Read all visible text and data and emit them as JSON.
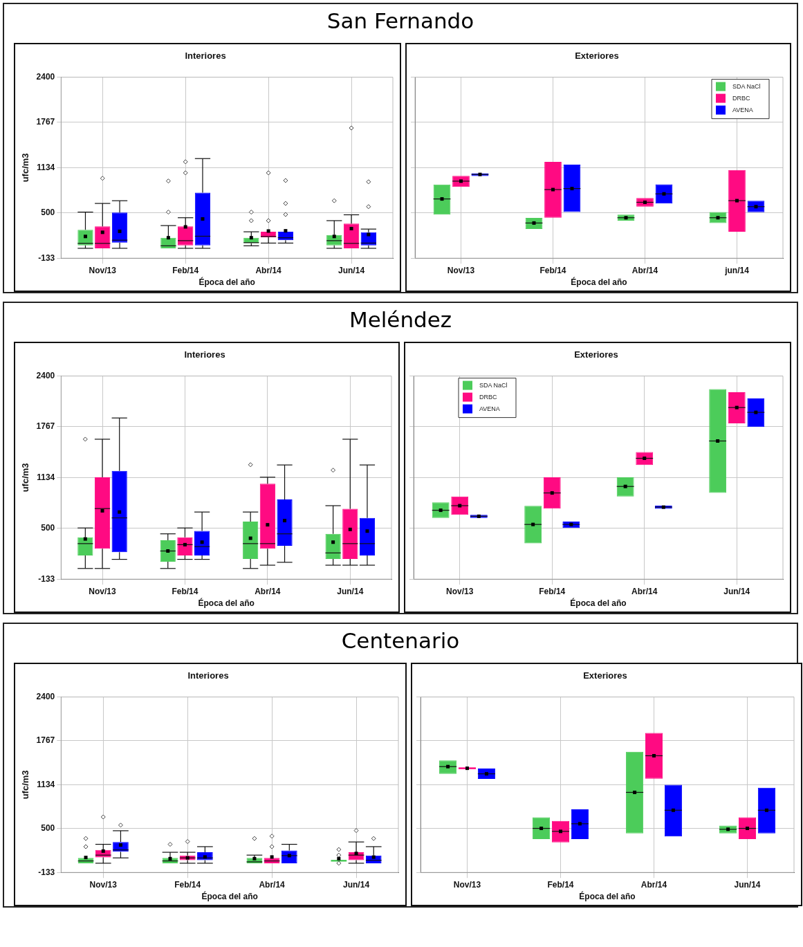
{
  "chart_data": [
    {
      "type": "other",
      "title": "San Fernando"
    },
    {
      "type": "box",
      "title": "Interiores",
      "xlabel": "Época del año",
      "ylabel": "ufc/m3",
      "categories": [
        "Nov/13",
        "Feb/14",
        "Abr/14",
        "Jun/14"
      ],
      "ylim": [
        -133,
        2400
      ],
      "yticks": [
        -133,
        500,
        1134,
        1767,
        2400
      ],
      "grid": true,
      "series": [
        {
          "color": "#4ccc5a",
          "boxes": [
            {
              "low": 5,
              "q1": 46,
              "median": 74,
              "q3": 264,
              "high": 512,
              "mean": 171
            },
            {
              "low": 5,
              "q1": 5,
              "median": 40,
              "q3": 153,
              "high": 323,
              "mean": 153,
              "outliers": [
                512,
                947
              ]
            },
            {
              "low": 40,
              "q1": 78,
              "median": 84,
              "q3": 153,
              "high": 236,
              "mean": 153,
              "outliers": [
                392,
                512
              ]
            },
            {
              "low": 5,
              "q1": 46,
              "median": 112,
              "q3": 191,
              "high": 392,
              "mean": 171,
              "outliers": [
                671
              ]
            }
          ]
        },
        {
          "color": "#ff0a82",
          "boxes": [
            {
              "low": 5,
              "q1": 5,
              "median": 74,
              "q3": 312,
              "high": 633,
              "mean": 229,
              "outliers": [
                985
              ]
            },
            {
              "low": 5,
              "q1": 46,
              "median": 112,
              "q3": 312,
              "high": 433,
              "mean": 305,
              "outliers": [
                1061,
                1216
              ]
            },
            {
              "low": 78,
              "q1": 160,
              "median": 170,
              "q3": 236,
              "high": 236,
              "mean": 247,
              "outliers": [
                392,
                1061
              ]
            },
            {
              "low": 5,
              "q1": 5,
              "median": 74,
              "q3": 350,
              "high": 474,
              "mean": 281,
              "outliers": [
                1689
              ]
            }
          ]
        },
        {
          "color": "#0000ff",
          "boxes": [
            {
              "low": 5,
              "q1": 84,
              "median": 119,
              "q3": 505,
              "high": 671,
              "mean": 243
            },
            {
              "low": 5,
              "q1": 46,
              "median": 174,
              "q3": 785,
              "high": 1261,
              "mean": 416
            },
            {
              "low": 78,
              "q1": 119,
              "median": 153,
              "q3": 236,
              "high": 236,
              "mean": 250,
              "outliers": [
                478,
                633,
                954
              ]
            },
            {
              "low": 5,
              "q1": 46,
              "median": 78,
              "q3": 229,
              "high": 274,
              "mean": 198,
              "outliers": [
                588,
                936
              ]
            }
          ]
        }
      ]
    },
    {
      "type": "box",
      "title": "Exteriores",
      "xlabel": "Época del año",
      "categories": [
        "Nov/13",
        "Feb/14",
        "Abr/14",
        "jun/14"
      ],
      "ylim": [
        -133,
        2400
      ],
      "yticks": [
        -133,
        500,
        1134,
        1767,
        2400
      ],
      "grid": true,
      "tick_labels": "x",
      "legend": "top right",
      "series": [
        {
          "name": "SDA NaCl",
          "color": "#4ccc5a",
          "boxes": [
            {
              "low": 477,
              "q1": 477,
              "median": 696,
              "q3": 898,
              "high": 898,
              "mean": 696
            },
            {
              "low": 275,
              "q1": 275,
              "median": 359,
              "q3": 430,
              "high": 430,
              "mean": 359
            },
            {
              "low": 393,
              "q1": 393,
              "median": 433,
              "q3": 477,
              "high": 477,
              "mean": 433
            },
            {
              "low": 359,
              "q1": 359,
              "median": 433,
              "q3": 514,
              "high": 514,
              "mean": 433
            }
          ]
        },
        {
          "name": "DRBC",
          "color": "#ff0a82",
          "boxes": [
            {
              "low": 864,
              "q1": 864,
              "median": 945,
              "q3": 1019,
              "high": 1019,
              "mean": 945
            },
            {
              "low": 433,
              "q1": 433,
              "median": 827,
              "q3": 1214,
              "high": 1214,
              "mean": 827
            },
            {
              "low": 588,
              "q1": 588,
              "median": 649,
              "q3": 709,
              "high": 709,
              "mean": 649
            },
            {
              "low": 238,
              "q1": 238,
              "median": 672,
              "q3": 1100,
              "high": 1100,
              "mean": 672
            }
          ]
        },
        {
          "name": "AVENA",
          "color": "#0000ff",
          "boxes": [
            {
              "low": 1016,
              "q1": 1016,
              "median": 1039,
              "q3": 1056,
              "high": 1056,
              "mean": 1039
            },
            {
              "low": 514,
              "q1": 514,
              "median": 841,
              "q3": 1177,
              "high": 1177,
              "mean": 841
            },
            {
              "low": 632,
              "q1": 632,
              "median": 767,
              "q3": 901,
              "high": 901,
              "mean": 767
            },
            {
              "low": 511,
              "q1": 511,
              "median": 588,
              "q3": 669,
              "high": 669,
              "mean": 588
            }
          ]
        }
      ]
    },
    {
      "type": "other",
      "title": "Meléndez"
    },
    {
      "type": "box",
      "title": "Interiores",
      "xlabel": "Época del año",
      "ylabel": "ufc/m3",
      "categories": [
        "Nov/13",
        "Feb/14",
        "Abr/14",
        "Jun/14"
      ],
      "ylim": [
        -133,
        2400
      ],
      "yticks": [
        -133,
        500,
        1134,
        1767,
        2400
      ],
      "grid": true,
      "series": [
        {
          "color": "#4ccc5a",
          "boxes": [
            {
              "low": 0,
              "q1": 163,
              "median": 310,
              "q3": 389,
              "high": 505,
              "mean": 368,
              "outliers": [
                1612
              ]
            },
            {
              "low": 0,
              "q1": 84,
              "median": 218,
              "q3": 352,
              "high": 432,
              "mean": 218
            },
            {
              "low": 0,
              "q1": 120,
              "median": 310,
              "q3": 585,
              "high": 704,
              "mean": 377,
              "outliers": [
                1294
              ]
            },
            {
              "low": 41,
              "q1": 120,
              "median": 194,
              "q3": 432,
              "high": 783,
              "mean": 328,
              "outliers": [
                1226
              ]
            }
          ]
        },
        {
          "color": "#ff0a82",
          "boxes": [
            {
              "low": 0,
              "q1": 246,
              "median": 747,
              "q3": 1138,
              "high": 1612,
              "mean": 719
            },
            {
              "low": 114,
              "q1": 163,
              "median": 297,
              "q3": 389,
              "high": 505,
              "mean": 297
            },
            {
              "low": 41,
              "q1": 246,
              "median": 310,
              "q3": 1058,
              "high": 1138,
              "mean": 545
            },
            {
              "low": 41,
              "q1": 120,
              "median": 310,
              "q3": 744,
              "high": 1612,
              "mean": 487
            }
          ]
        },
        {
          "color": "#0000ff",
          "boxes": [
            {
              "low": 114,
              "q1": 203,
              "median": 631,
              "q3": 1217,
              "high": 1877,
              "mean": 704
            },
            {
              "low": 114,
              "q1": 163,
              "median": 273,
              "q3": 469,
              "high": 704,
              "mean": 328
            },
            {
              "low": 77,
              "q1": 282,
              "median": 432,
              "q3": 860,
              "high": 1291,
              "mean": 597
            },
            {
              "low": 41,
              "q1": 163,
              "median": 310,
              "q3": 631,
              "high": 1291,
              "mean": 466
            }
          ]
        }
      ]
    },
    {
      "type": "box",
      "title": "Exteriores",
      "xlabel": "Época del año",
      "categories": [
        "Nov/13",
        "Feb/14",
        "Abr/14",
        "Jun/14"
      ],
      "ylim": [
        -133,
        2400
      ],
      "yticks": [
        -133,
        500,
        1134,
        1767,
        2400
      ],
      "grid": true,
      "tick_labels": "x",
      "legend": "top left",
      "series": [
        {
          "name": "SDA NaCl",
          "color": "#4ccc5a",
          "boxes": [
            {
              "low": 630,
              "q1": 630,
              "median": 726,
              "q3": 825,
              "high": 825,
              "mean": 726
            },
            {
              "low": 312,
              "q1": 312,
              "median": 549,
              "q3": 780,
              "high": 780,
              "mean": 549
            },
            {
              "low": 897,
              "q1": 897,
              "median": 1023,
              "q3": 1137,
              "high": 1137,
              "mean": 1023
            },
            {
              "low": 942,
              "q1": 942,
              "median": 1590,
              "q3": 2238,
              "high": 2238,
              "mean": 1590
            }
          ]
        },
        {
          "name": "DRBC",
          "color": "#ff0a82",
          "boxes": [
            {
              "low": 669,
              "q1": 669,
              "median": 783,
              "q3": 897,
              "high": 897,
              "mean": 783
            },
            {
              "low": 747,
              "q1": 747,
              "median": 942,
              "q3": 1137,
              "high": 1137,
              "mean": 942
            },
            {
              "low": 1290,
              "q1": 1290,
              "median": 1374,
              "q3": 1452,
              "high": 1452,
              "mean": 1374
            },
            {
              "low": 1809,
              "q1": 1809,
              "median": 2007,
              "q3": 2199,
              "high": 2199,
              "mean": 2007
            }
          ]
        },
        {
          "name": "AVENA",
          "color": "#0000ff",
          "boxes": [
            {
              "low": 630,
              "q1": 630,
              "median": 651,
              "q3": 669,
              "high": 669,
              "mean": 651
            },
            {
              "low": 504,
              "q1": 504,
              "median": 549,
              "q3": 585,
              "high": 585,
              "mean": 549
            },
            {
              "low": 744,
              "q1": 744,
              "median": 765,
              "q3": 783,
              "high": 783,
              "mean": 765
            },
            {
              "low": 1764,
              "q1": 1764,
              "median": 1947,
              "q3": 2121,
              "high": 2121,
              "mean": 1947
            }
          ]
        }
      ]
    },
    {
      "type": "other",
      "title": "Centenario"
    },
    {
      "type": "box",
      "title": "Interiores",
      "xlabel": "Época del año",
      "ylabel": "ufc/m3",
      "categories": [
        "Nov/13",
        "Feb/14",
        "Abr/14",
        "Jun/14"
      ],
      "ylim": [
        -133,
        2400
      ],
      "yticks": [
        -133,
        500,
        1134,
        1767,
        2400
      ],
      "grid": true,
      "series": [
        {
          "color": "#4ccc5a",
          "boxes": [
            {
              "low": 0,
              "q1": 0,
              "median": 33,
              "q3": 77,
              "high": 77,
              "mean": 83,
              "outliers": [
                239,
                357
              ]
            },
            {
              "low": 0,
              "q1": 0,
              "median": 33,
              "q3": 77,
              "high": 158,
              "mean": 66,
              "outliers": [
                273
              ]
            },
            {
              "low": 0,
              "q1": 0,
              "median": 20,
              "q3": 77,
              "high": 117,
              "mean": 66,
              "outliers": [
                357
              ]
            },
            {
              "low": 36,
              "q1": 36,
              "median": 36,
              "q3": 36,
              "high": 36,
              "mean": 66,
              "outliers": [
                0,
                117,
                198
              ]
            }
          ]
        },
        {
          "color": "#ff0a82",
          "boxes": [
            {
              "low": 0,
              "q1": 83,
              "median": 117,
              "q3": 192,
              "high": 273,
              "mean": 175,
              "outliers": [
                668
              ]
            },
            {
              "low": 0,
              "q1": 43,
              "median": 77,
              "q3": 110,
              "high": 158,
              "mean": 77,
              "outliers": [
                313
              ]
            },
            {
              "low": 0,
              "q1": 0,
              "median": 33,
              "q3": 77,
              "high": 77,
              "mean": 90,
              "outliers": [
                239,
                391
              ]
            },
            {
              "low": 0,
              "q1": 43,
              "median": 117,
              "q3": 158,
              "high": 307,
              "mean": 141,
              "outliers": [
                472
              ]
            }
          ]
        },
        {
          "color": "#0000ff",
          "boxes": [
            {
              "low": 77,
              "q1": 165,
              "median": 192,
              "q3": 307,
              "high": 469,
              "mean": 263,
              "outliers": [
                550
              ]
            },
            {
              "low": 0,
              "q1": 43,
              "median": 77,
              "q3": 158,
              "high": 239,
              "mean": 90
            },
            {
              "low": 0,
              "q1": 0,
              "median": 110,
              "q3": 183,
              "high": 273,
              "mean": 110
            },
            {
              "low": 0,
              "q1": 0,
              "median": 43,
              "q3": 110,
              "high": 239,
              "mean": 88,
              "outliers": [
                357
              ]
            }
          ]
        }
      ]
    },
    {
      "type": "box",
      "title": "Exteriores",
      "xlabel": "Época del año",
      "categories": [
        "Nov/13",
        "Feb/14",
        "Abr/14",
        "Jun/14"
      ],
      "ylim": [
        -133,
        2400
      ],
      "yticks": [
        -133,
        500,
        1134,
        1767,
        2400
      ],
      "grid": true,
      "tick_labels": "x",
      "series": [
        {
          "color": "#4ccc5a",
          "boxes": [
            {
              "low": 1291,
              "q1": 1291,
              "median": 1395,
              "q3": 1485,
              "high": 1485,
              "mean": 1395
            },
            {
              "low": 349,
              "q1": 349,
              "median": 503,
              "q3": 664,
              "high": 664,
              "mean": 503
            },
            {
              "low": 430,
              "q1": 430,
              "median": 1023,
              "q3": 1609,
              "high": 1609,
              "mean": 1023
            },
            {
              "low": 430,
              "q1": 430,
              "median": 490,
              "q3": 544,
              "high": 544,
              "mean": 490
            }
          ]
        },
        {
          "color": "#ff0a82",
          "boxes": [
            {
              "low": 1371,
              "q1": 1371,
              "median": 1371,
              "q3": 1371,
              "high": 1371,
              "mean": 1371
            },
            {
              "low": 302,
              "q1": 302,
              "median": 460,
              "q3": 611,
              "high": 611,
              "mean": 460
            },
            {
              "low": 1220,
              "q1": 1220,
              "median": 1552,
              "q3": 1881,
              "high": 1881,
              "mean": 1552
            },
            {
              "low": 349,
              "q1": 349,
              "median": 503,
              "q3": 664,
              "high": 664,
              "mean": 503
            }
          ]
        },
        {
          "color": "#0000ff",
          "boxes": [
            {
              "low": 1217,
              "q1": 1217,
              "median": 1291,
              "q3": 1368,
              "high": 1368,
              "mean": 1291
            },
            {
              "low": 349,
              "q1": 349,
              "median": 570,
              "q3": 778,
              "high": 778,
              "mean": 570
            },
            {
              "low": 386,
              "q1": 386,
              "median": 765,
              "q3": 1133,
              "high": 1133,
              "mean": 765
            },
            {
              "low": 430,
              "q1": 430,
              "median": 765,
              "q3": 1090,
              "high": 1090,
              "mean": 765
            }
          ]
        }
      ]
    }
  ]
}
